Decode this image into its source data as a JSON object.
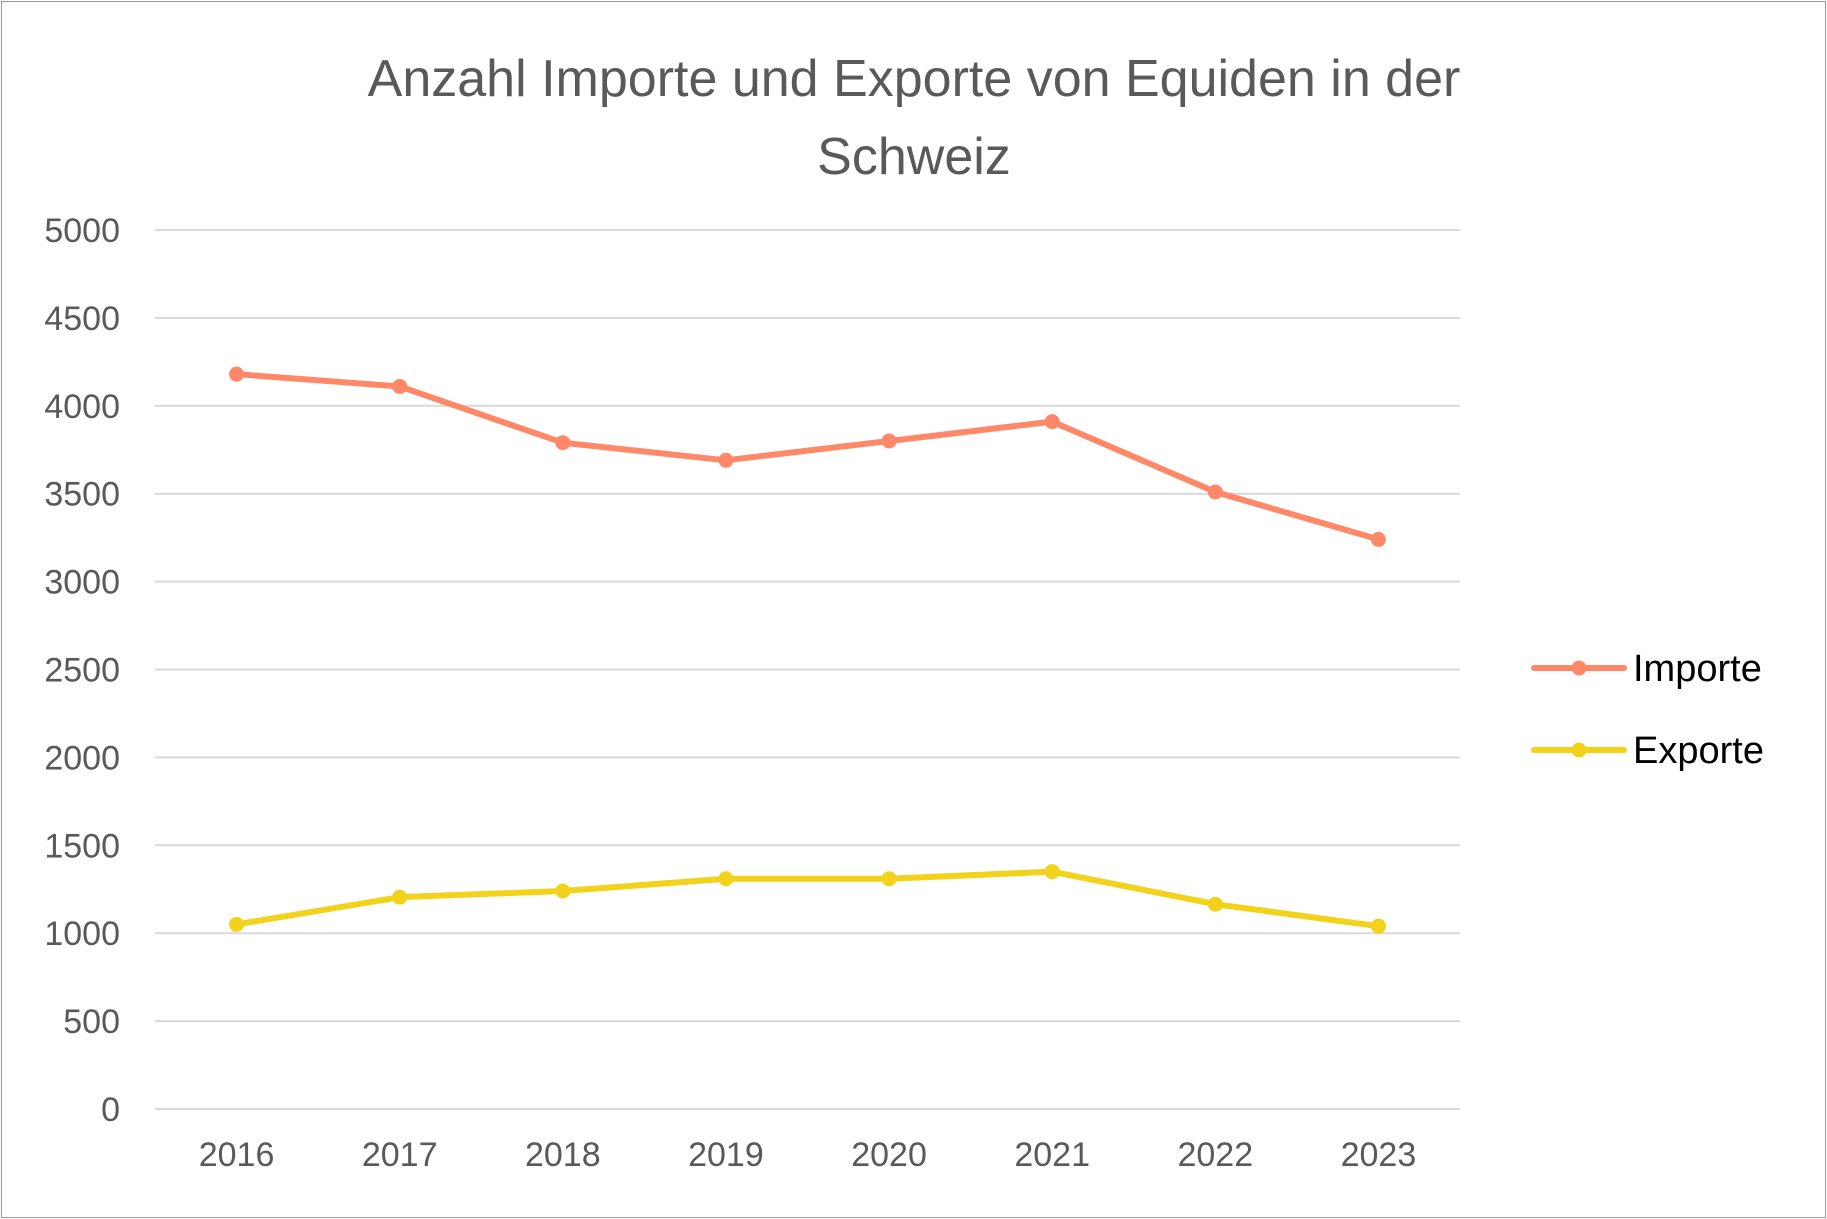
{
  "chart_data": {
    "type": "line",
    "title": "Anzahl Importe und Exporte von Equiden in der Schweiz",
    "title_lines": [
      "Anzahl Importe und Exporte von Equiden in der",
      "Schweiz"
    ],
    "x": [
      "2016",
      "2017",
      "2018",
      "2019",
      "2020",
      "2021",
      "2022",
      "2023"
    ],
    "series": [
      {
        "name": "Importe",
        "color": "#FF8868",
        "values": [
          4180,
          4110,
          3790,
          3690,
          3800,
          3910,
          3510,
          3240
        ]
      },
      {
        "name": "Exporte",
        "color": "#F2D21A",
        "values": [
          1050,
          1205,
          1240,
          1310,
          1310,
          1350,
          1165,
          1040
        ]
      }
    ],
    "ylim": [
      0,
      5000
    ],
    "yticks": [
      "0",
      "500",
      "1000",
      "1500",
      "2000",
      "2500",
      "3000",
      "3500",
      "4000",
      "4500",
      "5000"
    ],
    "xlabel": "",
    "ylabel": "",
    "grid": true,
    "legend_position": "right"
  }
}
